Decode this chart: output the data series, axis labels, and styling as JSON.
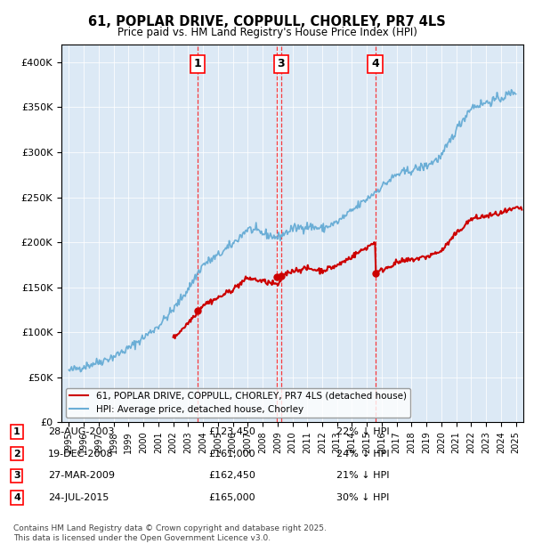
{
  "title": "61, POPLAR DRIVE, COPPULL, CHORLEY, PR7 4LS",
  "subtitle": "Price paid vs. HM Land Registry's House Price Index (HPI)",
  "legend_entries": [
    "61, POPLAR DRIVE, COPPULL, CHORLEY, PR7 4LS (detached house)",
    "HPI: Average price, detached house, Chorley"
  ],
  "footer": "Contains HM Land Registry data © Crown copyright and database right 2025.\nThis data is licensed under the Open Government Licence v3.0.",
  "transactions": [
    {
      "num": 1,
      "date": "28-AUG-2003",
      "price": 123450,
      "hpi_diff": "22% ↓ HPI",
      "year": 2003.65
    },
    {
      "num": 2,
      "date": "19-DEC-2008",
      "price": 161000,
      "hpi_diff": "24% ↓ HPI",
      "year": 2008.96
    },
    {
      "num": 3,
      "date": "27-MAR-2009",
      "price": 162450,
      "hpi_diff": "21% ↓ HPI",
      "year": 2009.23
    },
    {
      "num": 4,
      "date": "24-JUL-2015",
      "price": 165000,
      "hpi_diff": "30% ↓ HPI",
      "year": 2015.56
    }
  ],
  "hpi_color": "#6baed6",
  "price_color": "#cc0000",
  "background_color": "#dce9f5",
  "ylim": [
    0,
    420000
  ],
  "xlim_start": 1994.5,
  "xlim_end": 2025.5,
  "years_hpi": [
    1995,
    1996,
    1997,
    1998,
    1999,
    2000,
    2001,
    2002,
    2003,
    2004,
    2005,
    2006,
    2007,
    2008,
    2009,
    2010,
    2011,
    2012,
    2013,
    2014,
    2015,
    2016,
    2017,
    2018,
    2019,
    2020,
    2021,
    2022,
    2023,
    2024,
    2025
  ],
  "hpi_values": [
    57000,
    62000,
    67000,
    73000,
    82000,
    94000,
    107000,
    125000,
    148000,
    175000,
    185000,
    198000,
    215000,
    210000,
    205000,
    215000,
    218000,
    215000,
    222000,
    235000,
    248000,
    262000,
    275000,
    280000,
    285000,
    295000,
    325000,
    350000,
    355000,
    360000,
    368000
  ],
  "table_data": [
    [
      "1",
      "28-AUG-2003",
      "£123,450",
      "22% ↓ HPI"
    ],
    [
      "2",
      "19-DEC-2008",
      "£161,000",
      "24% ↓ HPI"
    ],
    [
      "3",
      "27-MAR-2009",
      "£162,450",
      "21% ↓ HPI"
    ],
    [
      "4",
      "24-JUL-2015",
      "£165,000",
      "30% ↓ HPI"
    ]
  ],
  "visible_above": [
    1,
    3,
    4
  ]
}
